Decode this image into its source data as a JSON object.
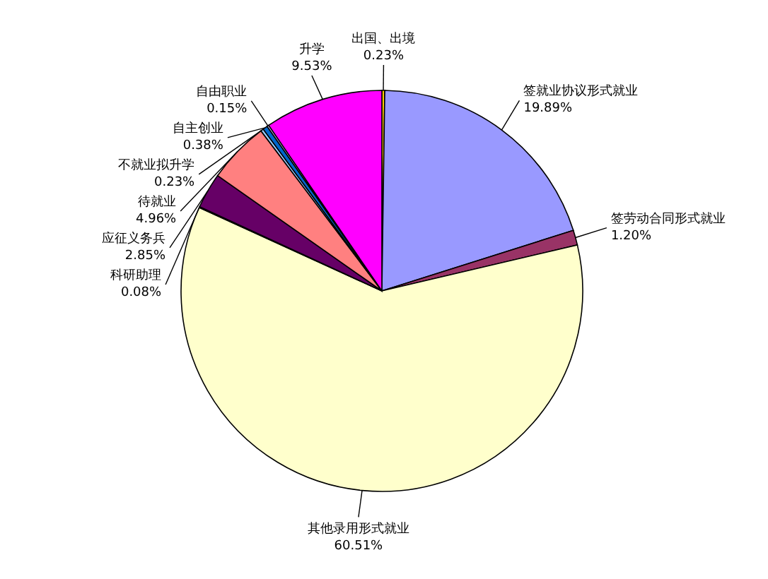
{
  "chart_data": {
    "type": "pie",
    "categories": [
      "出国、出境",
      "签就业协议形式就业",
      "签劳动合同形式就业",
      "其他录用形式就业",
      "科研助理",
      "应征义务兵",
      "待就业",
      "不就业拟升学",
      "自主创业",
      "自由职业",
      "升学"
    ],
    "values": [
      0.23,
      19.89,
      1.2,
      60.51,
      0.08,
      2.85,
      4.96,
      0.23,
      0.38,
      0.15,
      9.53
    ],
    "colors": [
      "#ffcc00",
      "#9999ff",
      "#993366",
      "#ffffcc",
      "#ccffff",
      "#660066",
      "#ff8080",
      "#99ccff",
      "#0066cc",
      "#ccccff",
      "#ff00ff"
    ],
    "value_labels": [
      "0.23%",
      "19.89%",
      "1.20%",
      "60.51%",
      "0.08%",
      "2.85%",
      "4.96%",
      "0.23%",
      "0.38%",
      "0.15%",
      "9.53%"
    ],
    "legend": false
  }
}
